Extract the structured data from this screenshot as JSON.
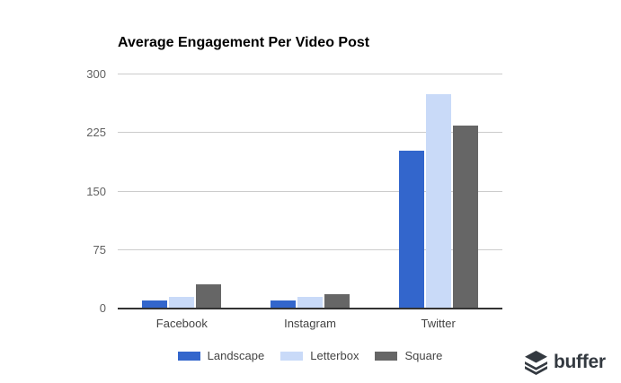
{
  "chart_data": {
    "type": "bar",
    "title": "Average Engagement Per Video Post",
    "categories": [
      "Facebook",
      "Instagram",
      "Twitter"
    ],
    "series": [
      {
        "name": "Landscape",
        "color": "#3366cc",
        "values": [
          10,
          10,
          202
        ]
      },
      {
        "name": "Letterbox",
        "color": "#c9daf8",
        "values": [
          15,
          15,
          275
        ]
      },
      {
        "name": "Square",
        "color": "#666666",
        "values": [
          31,
          18,
          234
        ]
      }
    ],
    "xlabel": "",
    "ylabel": "",
    "ylim": [
      0,
      300
    ],
    "yticks": [
      0,
      75,
      150,
      225,
      300
    ],
    "grid": true,
    "legend_position": "bottom",
    "colors": {
      "background": "#ffffff",
      "gridline": "#cccccc",
      "baseline": "#333333",
      "title": "#000000",
      "y_tick_label": "#616161",
      "x_tick_label": "#444444",
      "legend_label": "#444444"
    }
  },
  "brand": {
    "wordmark": "buffer",
    "color": "#333940"
  }
}
